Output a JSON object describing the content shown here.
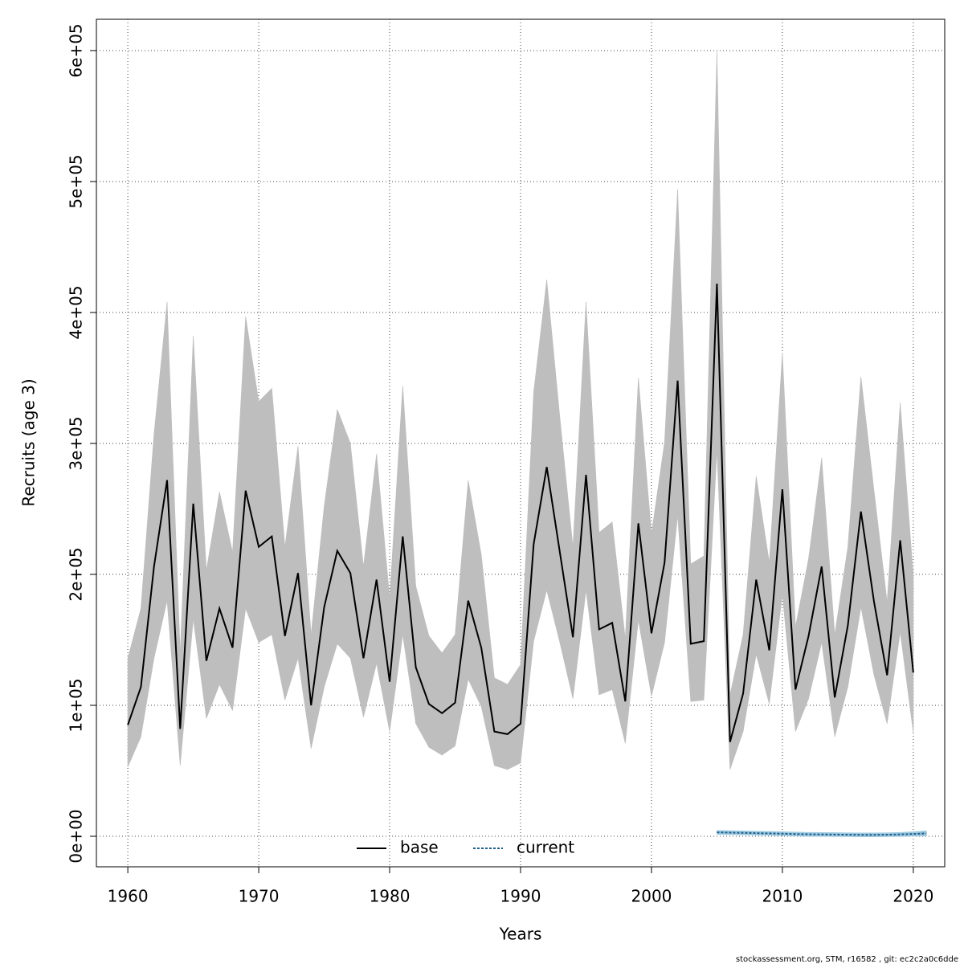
{
  "chart_data": {
    "type": "line",
    "x_label": "Years",
    "y_label": "Recruits (age 3)",
    "footer": "stockassessment.org, STM, r16582 , git: ec2c2a0c6dde",
    "xlim": [
      1957.6,
      2022.4
    ],
    "ylim": [
      -23300,
      623900
    ],
    "xticks": [
      1960,
      1970,
      1980,
      1990,
      2000,
      2010,
      2020
    ],
    "yticks": [
      {
        "value": 0,
        "label": "0e+00"
      },
      {
        "value": 100000,
        "label": "1e+05"
      },
      {
        "value": 200000,
        "label": "2e+05"
      },
      {
        "value": 300000,
        "label": "3e+05"
      },
      {
        "value": 400000,
        "label": "4e+05"
      },
      {
        "value": 500000,
        "label": "5e+05"
      },
      {
        "value": 600000,
        "label": "6e+05"
      }
    ],
    "grid": true,
    "legend": "bottom",
    "series": [
      {
        "name": "base",
        "color": "#000000",
        "band_color": "#bebebe",
        "dash": false,
        "x": [
          1960,
          1961,
          1962,
          1963,
          1964,
          1965,
          1966,
          1967,
          1968,
          1969,
          1970,
          1971,
          1972,
          1973,
          1974,
          1975,
          1976,
          1977,
          1978,
          1979,
          1980,
          1981,
          1982,
          1983,
          1984,
          1985,
          1986,
          1987,
          1988,
          1989,
          1990,
          1991,
          1992,
          1993,
          1994,
          1995,
          1996,
          1997,
          1998,
          1999,
          2000,
          2001,
          2002,
          2003,
          2004,
          2005,
          2006,
          2007,
          2008,
          2009,
          2010,
          2011,
          2012,
          2013,
          2014,
          2015,
          2016,
          2017,
          2018,
          2019,
          2020
        ],
        "values": [
          85000,
          114000,
          206000,
          272000,
          82000,
          254000,
          134000,
          174000,
          144000,
          264000,
          221000,
          229000,
          153000,
          201000,
          100000,
          175000,
          218000,
          201000,
          136000,
          196000,
          118000,
          229000,
          129000,
          101000,
          94000,
          102000,
          180000,
          144000,
          80000,
          78000,
          86000,
          223000,
          282000,
          217000,
          152000,
          276000,
          158000,
          163000,
          103000,
          239000,
          155000,
          209000,
          348000,
          147000,
          149000,
          422000,
          72000,
          109000,
          196000,
          142000,
          265000,
          112000,
          153000,
          206000,
          106000,
          161000,
          248000,
          179000,
          123000,
          226000,
          125000
        ],
        "upper": [
          136000,
          174000,
          307000,
          408000,
          140000,
          382000,
          203000,
          263000,
          217000,
          397000,
          332000,
          342000,
          221000,
          298000,
          154000,
          252000,
          326000,
          300000,
          206000,
          292000,
          182000,
          344000,
          191000,
          153000,
          140000,
          154000,
          272000,
          215000,
          121000,
          116000,
          131000,
          339000,
          425000,
          320000,
          221000,
          408000,
          232000,
          240000,
          151000,
          350000,
          231000,
          301000,
          494000,
          208000,
          214000,
          599000,
          108000,
          154000,
          275000,
          209000,
          369000,
          160000,
          212000,
          289000,
          154000,
          221000,
          351000,
          264000,
          179000,
          331000,
          199000
        ],
        "lower": [
          53000,
          76000,
          136000,
          180000,
          54000,
          166000,
          90000,
          116000,
          96000,
          174000,
          148000,
          154000,
          104000,
          136000,
          67000,
          114000,
          147000,
          136000,
          91000,
          132000,
          80000,
          154000,
          86000,
          68000,
          62000,
          69000,
          120000,
          99000,
          54000,
          51000,
          56000,
          149000,
          188000,
          148000,
          105000,
          188000,
          108000,
          112000,
          71000,
          165000,
          107000,
          148000,
          245000,
          103000,
          104000,
          295000,
          51000,
          80000,
          139000,
          101000,
          185000,
          80000,
          105000,
          148000,
          76000,
          114000,
          175000,
          123000,
          86000,
          156000,
          79000
        ]
      },
      {
        "name": "current",
        "color": "#1f5f8b",
        "band_color": "#9ecae1",
        "dash": true,
        "x": [
          2005,
          2006,
          2007,
          2008,
          2009,
          2010,
          2011,
          2012,
          2013,
          2014,
          2015,
          2016,
          2017,
          2018,
          2019,
          2020,
          2021
        ],
        "values": [
          3000,
          2800,
          2600,
          2400,
          2200,
          2000,
          1700,
          1500,
          1400,
          1300,
          1200,
          1100,
          1100,
          1200,
          1400,
          1800,
          2200
        ],
        "upper": [
          4500,
          4300,
          4100,
          3900,
          3700,
          3500,
          3200,
          3000,
          2900,
          2800,
          2700,
          2600,
          2600,
          2700,
          3000,
          3500,
          4200
        ],
        "lower": [
          1500,
          1300,
          1100,
          900,
          700,
          500,
          200,
          0,
          -100,
          -200,
          -300,
          -400,
          -400,
          -300,
          -200,
          100,
          200
        ]
      }
    ]
  }
}
